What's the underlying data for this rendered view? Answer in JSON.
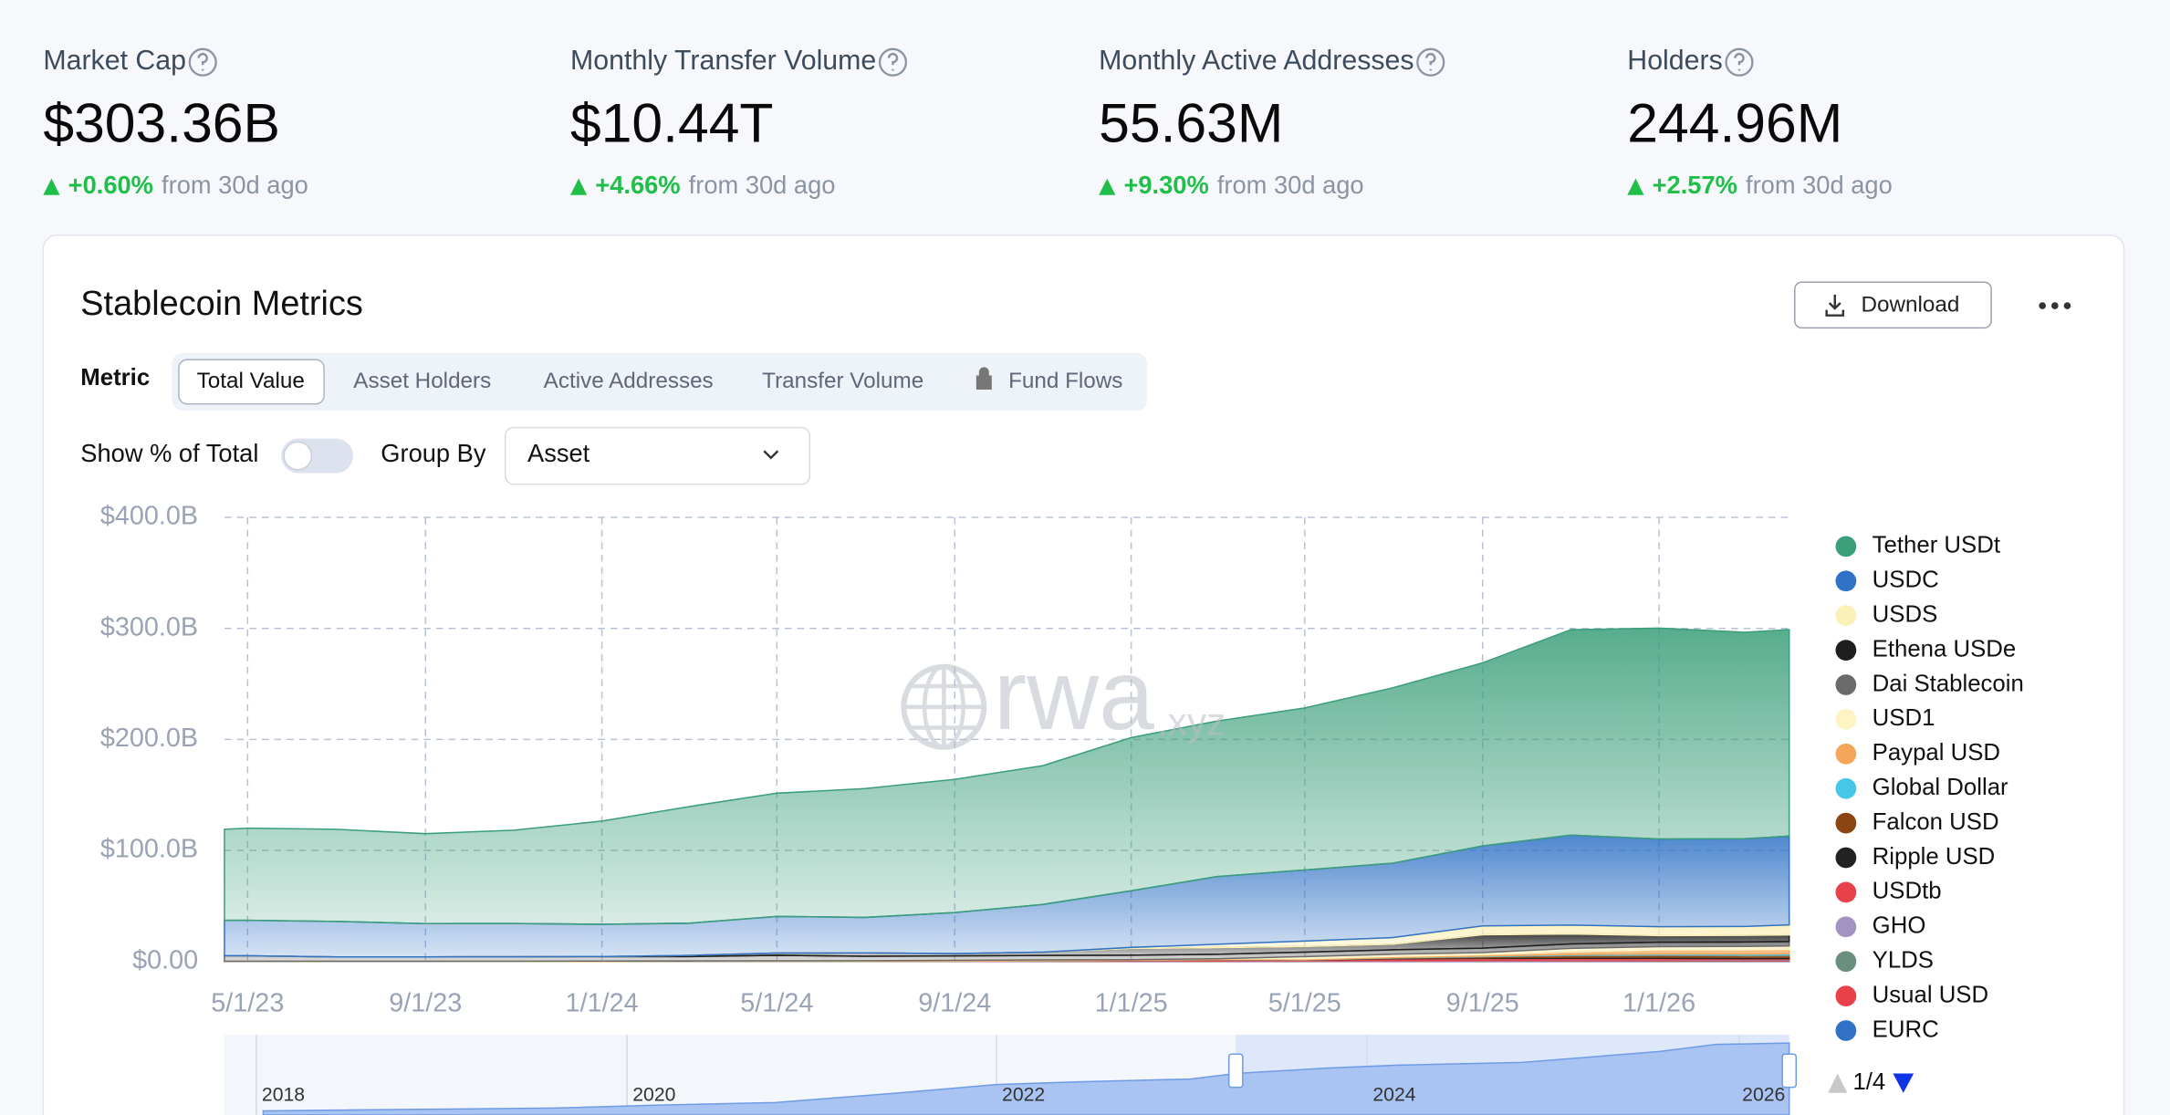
{
  "stats": [
    {
      "label": "Market Cap",
      "value": "$303.36B",
      "change": "+0.60%",
      "note": "from 30d ago"
    },
    {
      "label": "Monthly Transfer Volume",
      "value": "$10.44T",
      "change": "+4.66%",
      "note": "from 30d ago"
    },
    {
      "label": "Monthly Active Addresses",
      "value": "55.63M",
      "change": "+9.30%",
      "note": "from 30d ago"
    },
    {
      "label": "Holders",
      "value": "244.96M",
      "change": "+2.57%",
      "note": "from 30d ago"
    }
  ],
  "card": {
    "title": "Stablecoin Metrics",
    "download": "Download",
    "metric_label": "Metric",
    "tabs": [
      "Total Value",
      "Asset Holders",
      "Active Addresses",
      "Transfer Volume",
      "Fund Flows"
    ],
    "active_tab_index": 0,
    "locked_tab_index": 4,
    "toggle_label": "Show % of Total",
    "group_by_label": "Group By",
    "group_by_value": "Asset"
  },
  "watermark": {
    "main": "rwa",
    "suffix": ".xyz"
  },
  "navigator": {
    "labels": [
      "2018",
      "2020",
      "2022",
      "2024",
      "2026"
    ]
  },
  "legend_page": "1/4",
  "chart_data": {
    "type": "stacked-area",
    "x": [
      "4/15/23",
      "5/1/23",
      "7/1/23",
      "9/1/23",
      "11/1/23",
      "1/1/24",
      "3/1/24",
      "5/1/24",
      "7/1/24",
      "9/1/24",
      "11/1/24",
      "1/1/25",
      "3/1/25",
      "5/1/25",
      "7/1/25",
      "9/1/25",
      "11/1/25",
      "1/1/26",
      "3/1/26",
      "4/1/26"
    ],
    "xlim": [
      "4/15/23",
      "4/1/26"
    ],
    "xticks": [
      "5/1/23",
      "9/1/23",
      "1/1/24",
      "5/1/24",
      "9/1/24",
      "1/1/25",
      "5/1/25",
      "9/1/25",
      "1/1/26"
    ],
    "ylim": [
      0,
      400
    ],
    "yticks": [
      {
        "value": 0,
        "label": "$0.00"
      },
      {
        "value": 100,
        "label": "$100.0B"
      },
      {
        "value": 200,
        "label": "$200.0B"
      },
      {
        "value": 300,
        "label": "$300.0B"
      },
      {
        "value": 400,
        "label": "$400.0B"
      }
    ],
    "grid": true,
    "series": [
      {
        "name": "Tether USDt",
        "color": "#3a9e7a",
        "values": [
          82,
          83,
          83,
          81,
          84,
          93,
          105,
          111,
          116,
          120,
          125,
          138,
          140,
          146,
          158,
          165,
          185,
          190,
          186,
          186
        ]
      },
      {
        "name": "USDC",
        "color": "#2f72c6",
        "values": [
          32,
          32,
          32,
          30,
          30,
          29,
          29,
          33,
          32,
          37,
          43,
          51,
          61,
          64,
          67,
          72,
          81,
          79,
          79,
          80
        ]
      },
      {
        "name": "USDS",
        "color": "#fbf0b8",
        "values": [
          0,
          0,
          0,
          0,
          0,
          0,
          0,
          0,
          0,
          0,
          0,
          1,
          3,
          5,
          6,
          8,
          8,
          8,
          8,
          9
        ]
      },
      {
        "name": "Ethena USDe",
        "color": "#1e1e1e",
        "values": [
          0,
          0,
          0,
          0,
          0,
          0,
          1,
          2,
          3,
          2,
          3,
          6,
          6,
          5,
          5,
          12,
          9,
          6,
          6,
          6
        ]
      },
      {
        "name": "Dai Stablecoin",
        "color": "#6b6b6b",
        "values": [
          5,
          5,
          4,
          4,
          4,
          4,
          4,
          5,
          4,
          4,
          4,
          4,
          4,
          4,
          4,
          4,
          4,
          4,
          4,
          4
        ]
      },
      {
        "name": "USD1",
        "color": "#fff3c4",
        "values": [
          0,
          0,
          0,
          0,
          0,
          0,
          0,
          0,
          0,
          0,
          0,
          0,
          0,
          2,
          2,
          2,
          3,
          3,
          3,
          3
        ]
      },
      {
        "name": "Paypal USD",
        "color": "#f4a65a",
        "values": [
          0,
          0,
          0,
          0,
          0.1,
          0.3,
          0.3,
          0.4,
          0.5,
          0.7,
          0.8,
          0.5,
          0.7,
          0.9,
          1,
          1.2,
          2.5,
          3.5,
          3.8,
          3.9
        ]
      },
      {
        "name": "Global Dollar",
        "color": "#45c8e8",
        "values": [
          0,
          0,
          0,
          0,
          0,
          0,
          0,
          0,
          0,
          0,
          0,
          0,
          0.1,
          0.1,
          0.3,
          0.5,
          0.7,
          0.9,
          1,
          1.2
        ]
      },
      {
        "name": "Falcon USD",
        "color": "#8b4513",
        "values": [
          0,
          0,
          0,
          0,
          0,
          0,
          0,
          0,
          0,
          0,
          0,
          0,
          0,
          0,
          0.5,
          1,
          1.8,
          2,
          2,
          2
        ]
      },
      {
        "name": "Ripple USD",
        "color": "#222222",
        "values": [
          0,
          0,
          0,
          0,
          0,
          0,
          0,
          0,
          0,
          0,
          0,
          0,
          0.1,
          0.2,
          0.3,
          0.6,
          0.9,
          1.1,
          1.2,
          1.3
        ]
      },
      {
        "name": "USDtb",
        "color": "#e8414a",
        "values": [
          0,
          0,
          0,
          0,
          0,
          0,
          0,
          0,
          0,
          0,
          0,
          0,
          0.1,
          0.2,
          1.4,
          1.5,
          1.5,
          1.3,
          0.8,
          0.8
        ]
      },
      {
        "name": "GHO",
        "color": "#a393c0",
        "values": [
          0.01,
          0.02,
          0.02,
          0.03,
          0.03,
          0.04,
          0.05,
          0.06,
          0.08,
          0.1,
          0.15,
          0.2,
          0.2,
          0.2,
          0.3,
          0.3,
          0.4,
          0.4,
          0.5,
          0.5
        ]
      },
      {
        "name": "YLDS",
        "color": "#6b8f7e",
        "values": [
          0,
          0,
          0,
          0,
          0,
          0,
          0,
          0,
          0,
          0,
          0,
          0,
          0,
          0.01,
          0.02,
          0.05,
          0.1,
          0.2,
          0.3,
          0.3
        ]
      },
      {
        "name": "Usual USD",
        "color": "#e8414a",
        "values": [
          0,
          0,
          0,
          0,
          0,
          0,
          0,
          0,
          0,
          0.1,
          0.3,
          0.8,
          1.1,
          0.6,
          0.5,
          0.6,
          0.6,
          0.6,
          0.6,
          0.6
        ]
      },
      {
        "name": "EURC",
        "color": "#2f72c6",
        "values": [
          0.05,
          0.05,
          0.05,
          0.06,
          0.07,
          0.08,
          0.08,
          0.1,
          0.1,
          0.12,
          0.13,
          0.15,
          0.15,
          0.18,
          0.2,
          0.25,
          0.28,
          0.3,
          0.3,
          0.3
        ]
      }
    ]
  }
}
